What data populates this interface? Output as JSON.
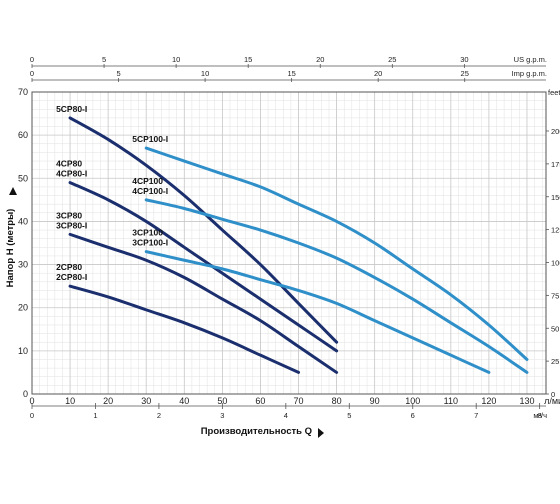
{
  "chart_data": {
    "type": "line",
    "title": "",
    "xlabel": "Производительность Q",
    "ylabel": "Напор H (метры)",
    "x_unit": "л/мин",
    "xlim": [
      0,
      135
    ],
    "ylim": [
      0,
      70
    ],
    "x_ticks": [
      0,
      10,
      20,
      30,
      40,
      50,
      60,
      70,
      80,
      90,
      100,
      110,
      120,
      130
    ],
    "y_ticks": [
      0,
      10,
      20,
      30,
      40,
      50,
      60,
      70
    ],
    "grid": true,
    "colors": {
      "dark": "#1b2f6e",
      "light": "#2f8fc9",
      "grid": "#c8c8c8"
    },
    "top_axes": [
      {
        "label": "US g.p.m.",
        "per_lpm": 0.26417,
        "ticks": [
          0,
          5,
          10,
          15,
          20,
          25,
          30
        ]
      },
      {
        "label": "Imp g.p.m.",
        "per_lpm": 0.21997,
        "ticks": [
          0,
          5,
          10,
          15,
          20,
          25
        ]
      }
    ],
    "bottom_axis": {
      "label": "м³/ч",
      "per_lpm": 0.06,
      "ticks": [
        0,
        1,
        2,
        3,
        4,
        5,
        6,
        7,
        8
      ]
    },
    "right_axis": {
      "label": "feet",
      "per_m": 3.28084,
      "ticks": [
        0,
        25,
        50,
        75,
        100,
        125,
        150,
        175,
        200
      ]
    },
    "series": [
      {
        "name": "5CP80-I",
        "color": "dark",
        "labels": [
          "5CP80-I"
        ],
        "x": [
          10,
          20,
          30,
          40,
          50,
          60,
          70,
          80
        ],
        "y": [
          64,
          59,
          53,
          46,
          38,
          30,
          21,
          12
        ]
      },
      {
        "name": "4CP80 / 4CP80-I",
        "color": "dark",
        "labels": [
          "4CP80",
          "4CP80-I"
        ],
        "x": [
          10,
          20,
          30,
          40,
          50,
          60,
          70,
          80
        ],
        "y": [
          49,
          45,
          40,
          34,
          28,
          22,
          16,
          10
        ]
      },
      {
        "name": "3CP80 / 3CP80-I",
        "color": "dark",
        "labels": [
          "3CP80",
          "3CP80-I"
        ],
        "x": [
          10,
          20,
          30,
          40,
          50,
          60,
          70,
          80
        ],
        "y": [
          37,
          34,
          31,
          27,
          22,
          17,
          11,
          5
        ]
      },
      {
        "name": "2CP80 / 2CP80-I",
        "color": "dark",
        "labels": [
          "2CP80",
          "2CP80-I"
        ],
        "x": [
          10,
          20,
          30,
          40,
          50,
          60,
          70
        ],
        "y": [
          25,
          22.5,
          19.5,
          16.5,
          13,
          9,
          5
        ]
      },
      {
        "name": "5CP100-I",
        "color": "light",
        "labels": [
          "5CP100-I"
        ],
        "x": [
          30,
          40,
          50,
          60,
          70,
          80,
          90,
          100,
          110,
          120,
          130
        ],
        "y": [
          57,
          54,
          51,
          48,
          44,
          40,
          35,
          29,
          23,
          16,
          8
        ]
      },
      {
        "name": "4CP100 / 4CP100-I",
        "color": "light",
        "labels": [
          "4CP100",
          "4CP100-I"
        ],
        "x": [
          30,
          40,
          50,
          60,
          70,
          80,
          90,
          100,
          110,
          120,
          130
        ],
        "y": [
          45,
          43,
          40.5,
          38,
          35,
          31.5,
          27,
          22,
          16.5,
          11,
          5
        ]
      },
      {
        "name": "3CP100 / 3CP100-I",
        "color": "light",
        "labels": [
          "3CP100",
          "3CP100-I"
        ],
        "x": [
          30,
          40,
          50,
          60,
          70,
          80,
          90,
          100,
          110,
          120
        ],
        "y": [
          33,
          31,
          29,
          26.5,
          24,
          21,
          17,
          13,
          9,
          5
        ]
      }
    ]
  }
}
